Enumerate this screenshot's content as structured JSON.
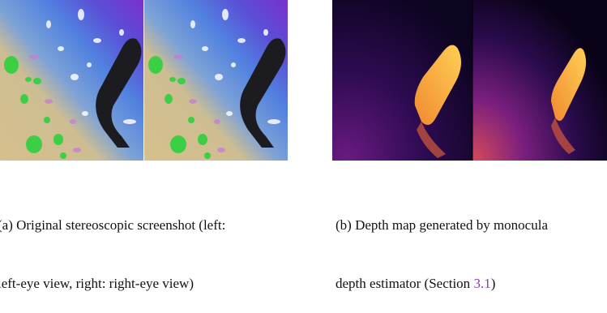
{
  "figure": {
    "panels": [
      {
        "caption_lines": [
          "(a) Original stereoscopic screenshot (left:",
          "left-eye view, right: right-eye view)"
        ]
      },
      {
        "caption_lines": [
          "(b) Depth map generated by monocula"
        ],
        "caption_line2": {
          "text": "depth estimator (Section",
          "link": "3.1",
          "suffix": ")"
        }
      }
    ]
  }
}
